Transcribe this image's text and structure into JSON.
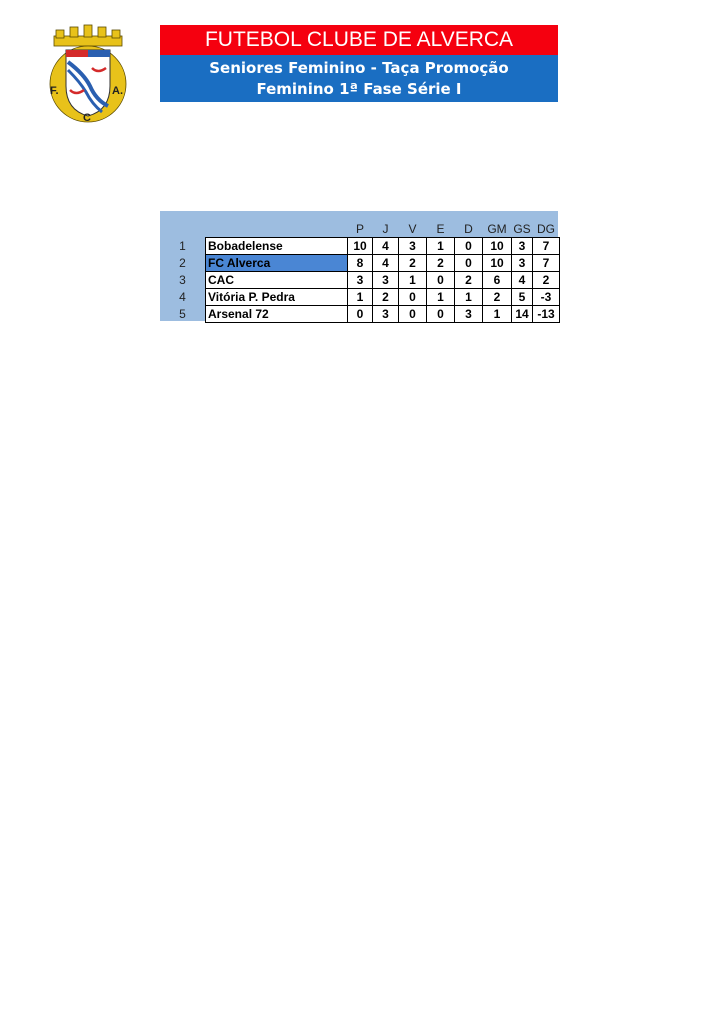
{
  "header": {
    "club_name": "FUTEBOL CLUBE DE ALVERCA",
    "competition_line1": "Seniores Feminino - Taça Promoção",
    "competition_line2": "Feminino 1ª Fase Série I",
    "logo_letters": [
      "F.",
      "C",
      "A."
    ]
  },
  "colors": {
    "red_bar": "#f5000f",
    "blue_bar": "#1a6ec2",
    "table_bg": "#9dbde0",
    "highlight": "#4a86d4"
  },
  "standings": {
    "columns": [
      "P",
      "J",
      "V",
      "E",
      "D",
      "GM",
      "GS",
      "DG"
    ],
    "rows": [
      {
        "pos": "1",
        "team": "Bobadelense",
        "values": [
          "10",
          "4",
          "3",
          "1",
          "0",
          "10",
          "3",
          "7"
        ]
      },
      {
        "pos": "2",
        "team": "FC Alverca",
        "values": [
          "8",
          "4",
          "2",
          "2",
          "0",
          "10",
          "3",
          "7"
        ],
        "highlighted": true
      },
      {
        "pos": "3",
        "team": "CAC",
        "values": [
          "3",
          "3",
          "1",
          "0",
          "2",
          "6",
          "4",
          "2"
        ]
      },
      {
        "pos": "4",
        "team": "Vitória P. Pedra",
        "values": [
          "1",
          "2",
          "0",
          "1",
          "1",
          "2",
          "5",
          "-3"
        ]
      },
      {
        "pos": "5",
        "team": "Arsenal 72",
        "values": [
          "0",
          "3",
          "0",
          "0",
          "3",
          "1",
          "14",
          "-13"
        ]
      }
    ]
  }
}
